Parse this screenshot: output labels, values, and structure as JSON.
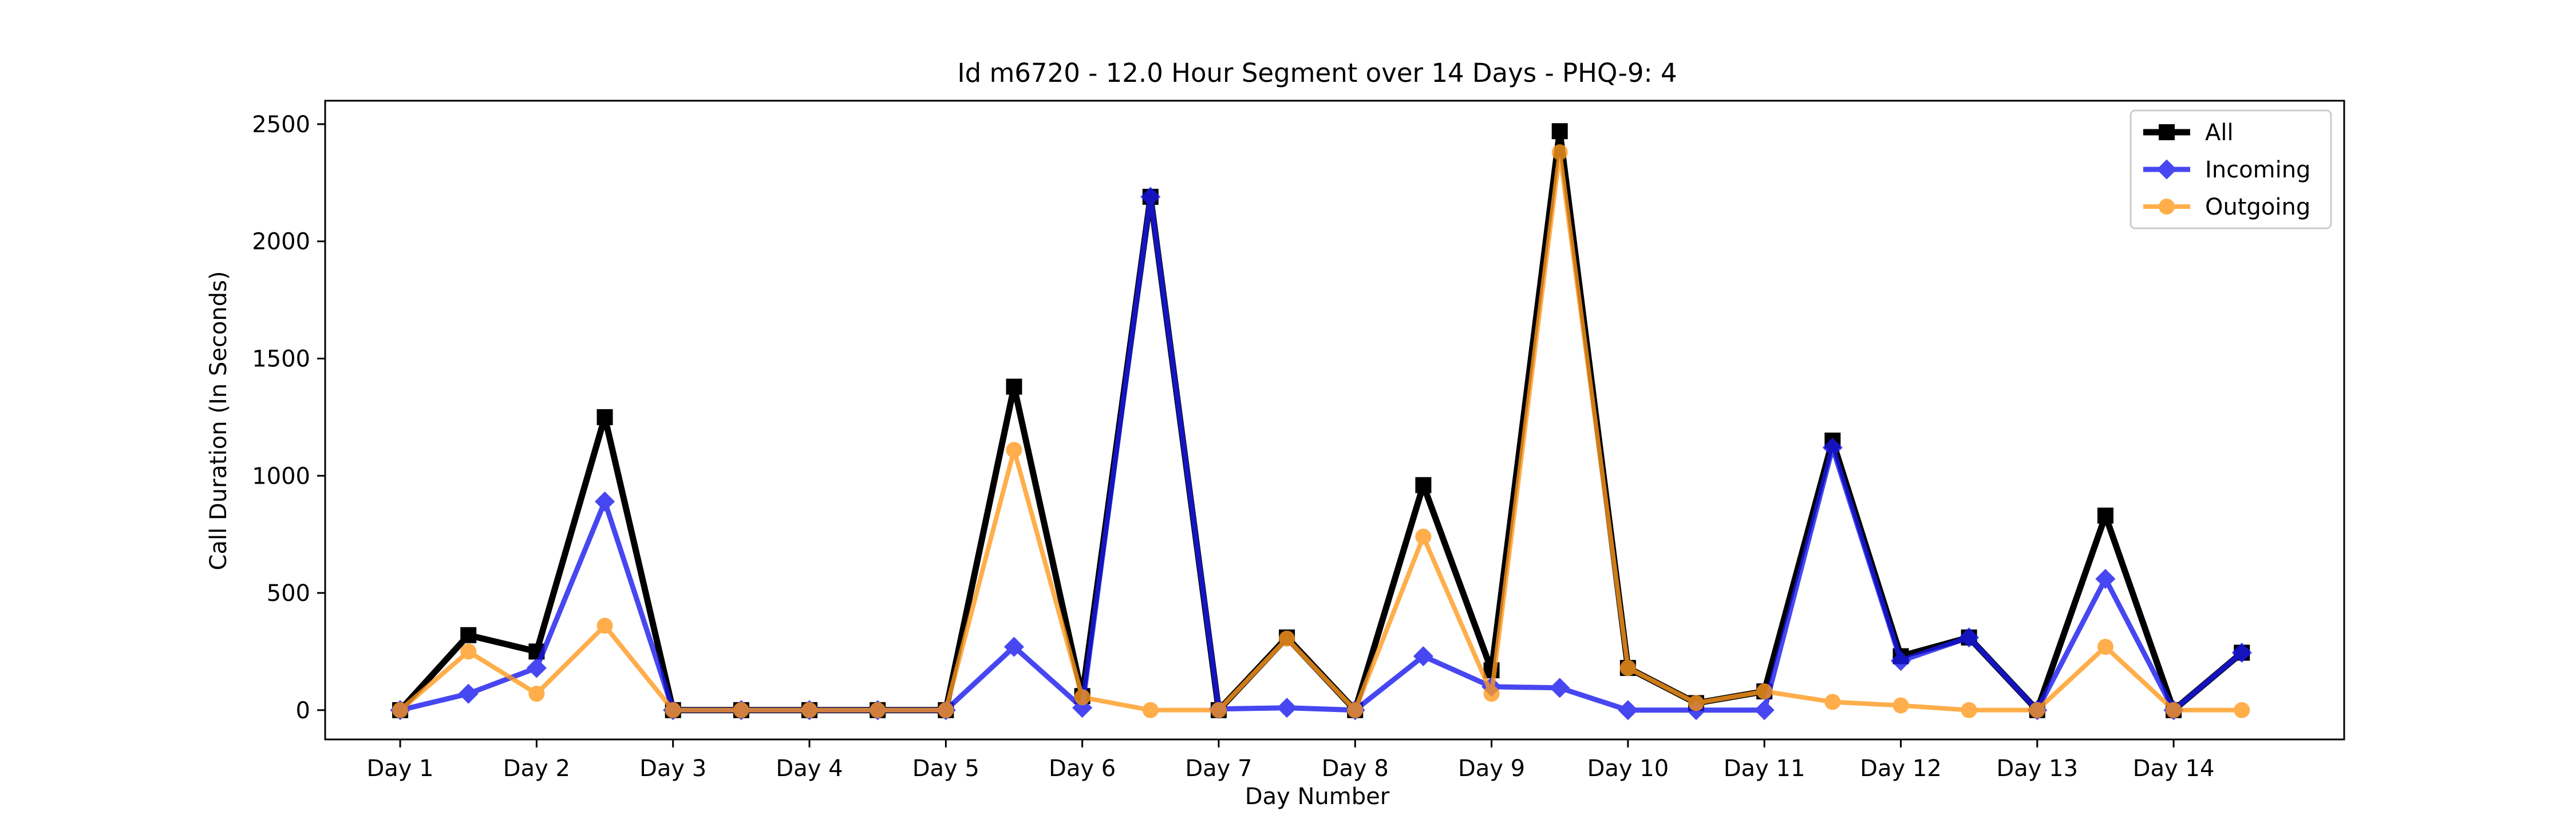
{
  "chart_data": {
    "type": "line",
    "title": "Id m6720 - 12.0 Hour Segment over 14 Days - PHQ-9: 4",
    "xlabel": "Day Number",
    "ylabel": "Call Duration (In Seconds)",
    "x_tick_labels": [
      "Day 1",
      "Day 2",
      "Day 3",
      "Day 4",
      "Day 5",
      "Day 6",
      "Day 7",
      "Day 8",
      "Day 9",
      "Day 10",
      "Day 11",
      "Day 12",
      "Day 13",
      "Day 14"
    ],
    "y_ticks": [
      0,
      500,
      1000,
      1500,
      2000,
      2500
    ],
    "ylim": [
      -125,
      2600
    ],
    "xlim": [
      0.45,
      15.25
    ],
    "grid": false,
    "legend_position": "top-right",
    "x": [
      1,
      1.5,
      2,
      2.5,
      3,
      3.5,
      4,
      4.5,
      5,
      5.5,
      6,
      6.5,
      7,
      7.5,
      8,
      8.5,
      9,
      9.5,
      10,
      10.5,
      11,
      11.5,
      12,
      12.5,
      13,
      13.5,
      14,
      14.5
    ],
    "series": [
      {
        "name": "All",
        "color": "#000000",
        "marker": "square",
        "values": [
          0,
          320,
          250,
          1250,
          0,
          0,
          0,
          0,
          0,
          1380,
          60,
          2190,
          0,
          310,
          0,
          960,
          170,
          2470,
          180,
          30,
          80,
          1150,
          230,
          310,
          0,
          830,
          0,
          245
        ]
      },
      {
        "name": "Incoming",
        "color": "#1a1aee",
        "marker": "diamond",
        "values": [
          0,
          70,
          180,
          890,
          0,
          0,
          0,
          0,
          0,
          270,
          10,
          2190,
          5,
          10,
          0,
          230,
          100,
          95,
          0,
          0,
          0,
          1120,
          210,
          310,
          0,
          560,
          0,
          245
        ]
      },
      {
        "name": "Outgoing",
        "color": "#ff9a1f",
        "marker": "circle",
        "values": [
          0,
          250,
          70,
          360,
          0,
          0,
          0,
          0,
          0,
          1110,
          55,
          0,
          0,
          305,
          0,
          740,
          70,
          2380,
          180,
          30,
          80,
          35,
          20,
          0,
          0,
          270,
          0,
          0
        ]
      }
    ]
  }
}
